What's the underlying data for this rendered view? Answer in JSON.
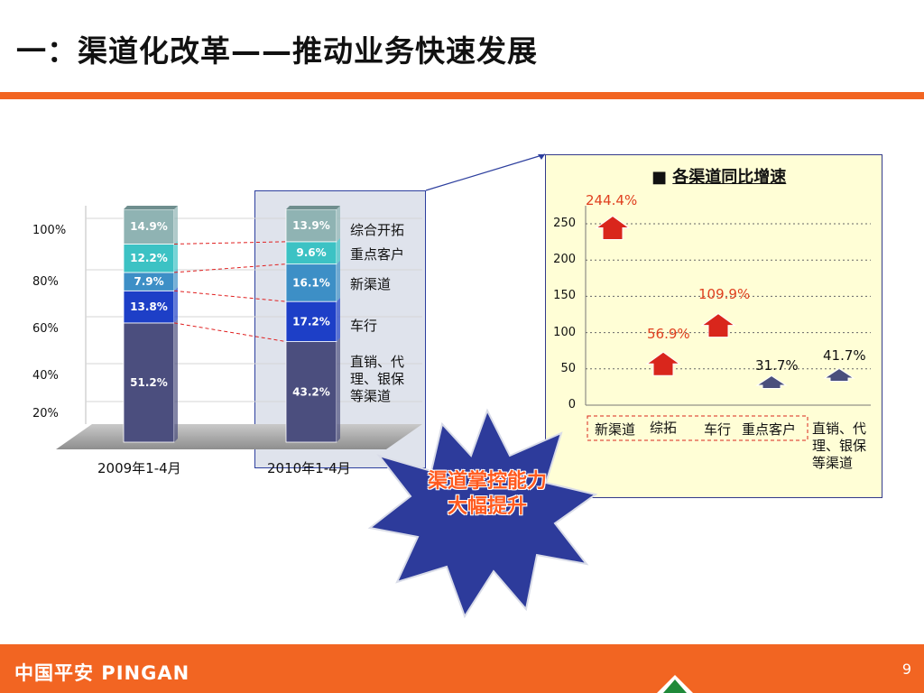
{
  "slide": {
    "title": "一：渠道化改革——推动业务快速发展",
    "page_number": "9",
    "logo_text": "中国平安 PINGAN"
  },
  "colors": {
    "brand_orange": "#f26522",
    "seg_1": "#4b4e7e",
    "seg_2": "#1d3fc7",
    "seg_3": "#3d8fc6",
    "seg_4": "#3cc2c4",
    "seg_5": "#8fb3b3",
    "arrow_red": "#d9261c",
    "arrow_navy": "#4a4f7c",
    "callout_star": "#2d3b9b"
  },
  "left_legend": [
    "综合开拓",
    "重点客户",
    "新渠道",
    "车行",
    "直销、代理、银保等渠道"
  ],
  "callout_text": "渠道掌控能力大幅提升",
  "chart_data": [
    {
      "type": "bar",
      "stacked": true,
      "categories": [
        "2009年1-4月",
        "2010年1-4月"
      ],
      "y_ticks": [
        "100%",
        "80%",
        "60%",
        "40%",
        "20%"
      ],
      "ylim": [
        0,
        100
      ],
      "series": [
        {
          "name": "直销、代理、银保等渠道",
          "values": [
            51.2,
            43.2
          ],
          "labels": [
            "51.2%",
            "43.2%"
          ]
        },
        {
          "name": "车行",
          "values": [
            13.8,
            17.2
          ],
          "labels": [
            "13.8%",
            "17.2%"
          ]
        },
        {
          "name": "新渠道",
          "values": [
            7.9,
            16.1
          ],
          "labels": [
            "7.9%",
            "16.1%"
          ]
        },
        {
          "name": "重点客户",
          "values": [
            12.2,
            9.6
          ],
          "labels": [
            "12.2%",
            "9.6%"
          ]
        },
        {
          "name": "综合开拓",
          "values": [
            14.9,
            13.9
          ],
          "labels": [
            "14.9%",
            "13.9%"
          ]
        }
      ]
    },
    {
      "type": "scatter",
      "title": "各渠道同比增速",
      "categories": [
        "新渠道",
        "综拓",
        "车行",
        "重点客户",
        "直销、代理、银保等渠道"
      ],
      "values": [
        244.4,
        56.9,
        109.9,
        31.7,
        41.7
      ],
      "labels": [
        "244.4%",
        "56.9%",
        "109.9%",
        "31.7%",
        "41.7%"
      ],
      "y_ticks": [
        "250",
        "200",
        "150",
        "100",
        "50",
        "0"
      ],
      "ylim": [
        0,
        250
      ]
    }
  ]
}
